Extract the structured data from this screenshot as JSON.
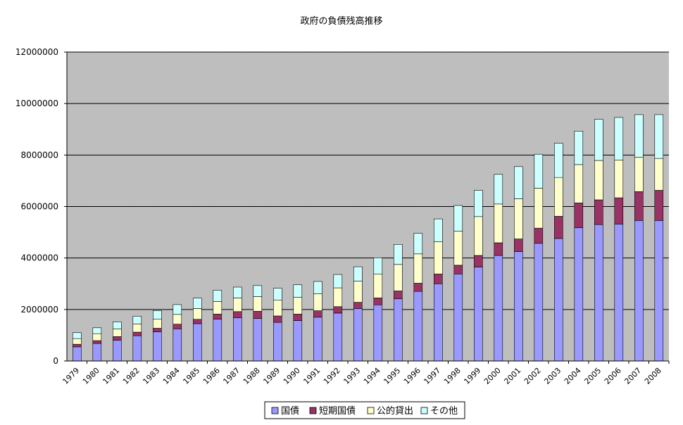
{
  "chart_data": {
    "type": "bar",
    "stacked": true,
    "title": "政府の負債残高推移",
    "xlabel": "",
    "ylabel": "",
    "ylim": [
      0,
      12000000
    ],
    "ytick_step": 2000000,
    "grid": true,
    "legend_position": "bottom",
    "categories": [
      "1979",
      "1980",
      "1981",
      "1982",
      "1983",
      "1984",
      "1985",
      "1986",
      "1987",
      "1988",
      "1989",
      "1990",
      "1991",
      "1992",
      "1993",
      "1994",
      "1995",
      "1996",
      "1997",
      "1998",
      "1999",
      "2000",
      "2001",
      "2002",
      "2003",
      "2004",
      "2005",
      "2006",
      "2007",
      "2008"
    ],
    "series": [
      {
        "name": "国債",
        "color": "#9999ff",
        "values": [
          550000,
          680000,
          800000,
          980000,
          1130000,
          1250000,
          1450000,
          1620000,
          1680000,
          1650000,
          1500000,
          1570000,
          1700000,
          1860000,
          2040000,
          2180000,
          2420000,
          2700000,
          3000000,
          3380000,
          3650000,
          4100000,
          4250000,
          4570000,
          4760000,
          5180000,
          5300000,
          5320000,
          5460000,
          5460000
        ]
      },
      {
        "name": "短期国債",
        "color": "#993366",
        "values": [
          100000,
          110000,
          150000,
          140000,
          140000,
          180000,
          170000,
          200000,
          240000,
          280000,
          250000,
          250000,
          250000,
          250000,
          240000,
          270000,
          300000,
          320000,
          380000,
          340000,
          450000,
          490000,
          490000,
          590000,
          860000,
          960000,
          960000,
          1020000,
          1120000,
          1170000
        ]
      },
      {
        "name": "公的貸出",
        "color": "#ffffcc",
        "values": [
          220000,
          270000,
          300000,
          320000,
          350000,
          380000,
          420000,
          490000,
          530000,
          570000,
          610000,
          660000,
          660000,
          730000,
          820000,
          920000,
          1030000,
          1140000,
          1260000,
          1320000,
          1510000,
          1510000,
          1560000,
          1550000,
          1510000,
          1490000,
          1530000,
          1470000,
          1340000,
          1240000
        ]
      },
      {
        "name": "その他",
        "color": "#ccffff",
        "values": [
          230000,
          230000,
          270000,
          300000,
          340000,
          380000,
          400000,
          440000,
          420000,
          430000,
          470000,
          480000,
          480000,
          520000,
          560000,
          640000,
          780000,
          800000,
          880000,
          1000000,
          1020000,
          1150000,
          1250000,
          1320000,
          1330000,
          1300000,
          1600000,
          1650000,
          1650000,
          1700000
        ]
      }
    ]
  }
}
